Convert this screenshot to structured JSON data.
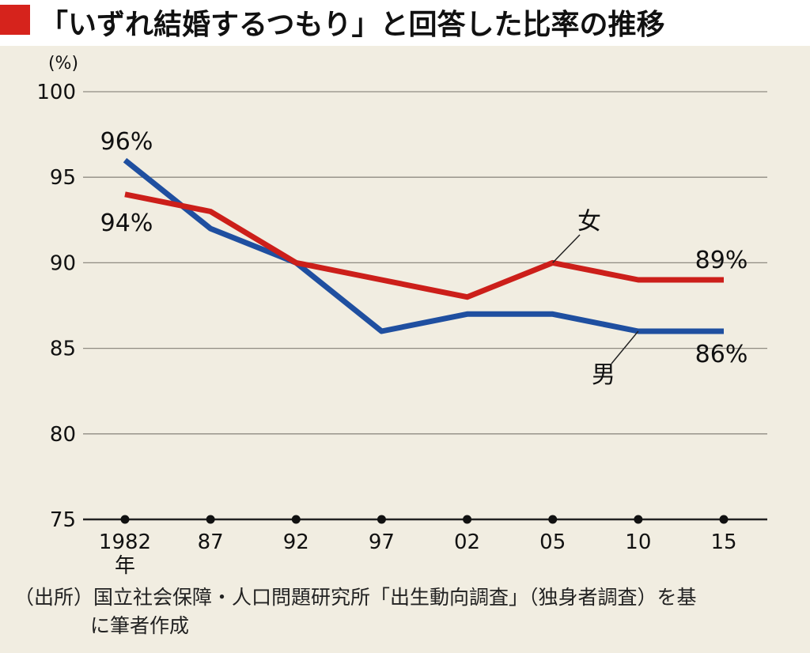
{
  "title": "「いずれ結婚するつもり」と回答した比率の推移",
  "colors": {
    "accent": "#d6231c",
    "women": "#cc1f1a",
    "men": "#1f4fa0",
    "background": "#f1ede1"
  },
  "chart_data": {
    "type": "line",
    "title": "「いずれ結婚するつもり」と回答した比率の推移",
    "yunit": "(%)",
    "ylim": [
      75,
      100
    ],
    "yticks": [
      75,
      80,
      85,
      90,
      95,
      100
    ],
    "categories": [
      "1982",
      "87",
      "92",
      "97",
      "02",
      "05",
      "10",
      "15"
    ],
    "xunit": "年",
    "grid": true,
    "series": [
      {
        "name": "女",
        "color": "#cc1f1a",
        "values": [
          94,
          93,
          90,
          89,
          88,
          90,
          89,
          89
        ]
      },
      {
        "name": "男",
        "color": "#1f4fa0",
        "values": [
          96,
          92,
          90,
          86,
          87,
          87,
          86,
          86
        ]
      }
    ],
    "annotations": {
      "women_start": "94%",
      "men_start": "96%",
      "women_end": "89%",
      "men_end": "86%"
    }
  },
  "source": {
    "line1": "（出所）国立社会保障・人口問題研究所「出生動向調査」（独身者調査）を基",
    "line2": "に筆者作成"
  }
}
